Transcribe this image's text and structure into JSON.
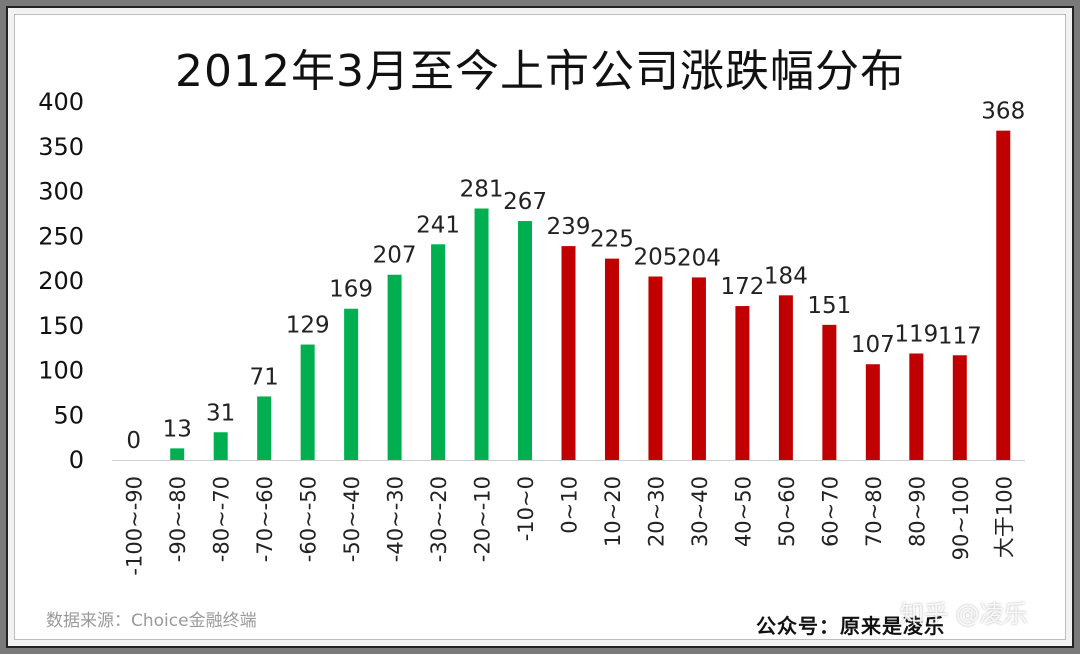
{
  "chart_data": {
    "type": "bar",
    "title": "2012年3月至今上市公司涨跌幅分布",
    "categories": [
      "-100~-90",
      "-90~-80",
      "-80~-70",
      "-70~-60",
      "-60~-50",
      "-50~-40",
      "-40~-30",
      "-30~-20",
      "-20~-10",
      "-10~0",
      "0~10",
      "10~20",
      "20~30",
      "30~40",
      "40~50",
      "50~60",
      "60~70",
      "70~80",
      "80~90",
      "90~100",
      "大于100"
    ],
    "values": [
      0,
      13,
      31,
      71,
      129,
      169,
      207,
      241,
      281,
      267,
      239,
      225,
      205,
      204,
      172,
      184,
      151,
      107,
      119,
      117,
      368
    ],
    "ylim": [
      0,
      400
    ],
    "yticks": [
      0,
      50,
      100,
      150,
      200,
      250,
      300,
      350,
      400
    ],
    "xlabel": "",
    "ylabel": "",
    "grid": false,
    "colors": {
      "negative": "#00b050",
      "positive": "#c00000"
    }
  },
  "footer": {
    "source": "数据来源：Choice金融终端",
    "account": "公众号：原来是凌乐"
  },
  "watermark": "知乎 @凌乐"
}
